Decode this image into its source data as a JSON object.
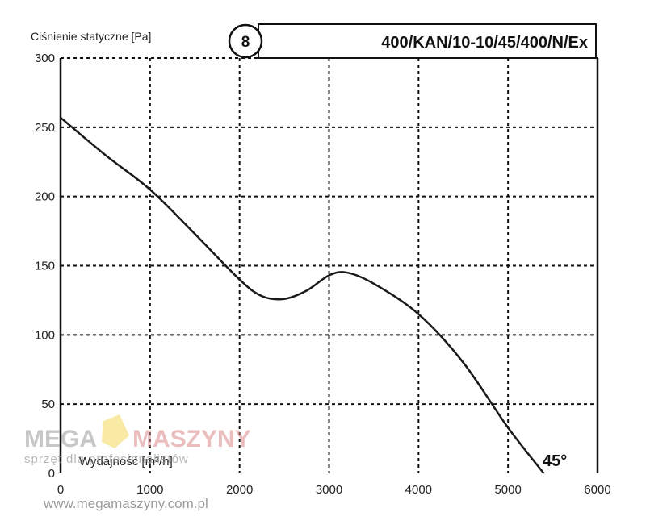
{
  "chart_data": {
    "type": "line",
    "title": "400/KAN/10-10/45/400/N/Ex",
    "badge": "8",
    "angle_label": "45°",
    "ylabel": "Ciśnienie statyczne [Pa]",
    "xlabel": "Wydajność [m³/h]",
    "xlim": [
      0,
      6000
    ],
    "ylim": [
      0,
      300
    ],
    "x_ticks": [
      0,
      1000,
      2000,
      3000,
      4000,
      5000,
      6000
    ],
    "y_ticks": [
      0,
      50,
      100,
      150,
      200,
      250,
      300
    ],
    "x_tick_labels": [
      "0",
      "1000",
      "2000",
      "3000",
      "4000",
      "5000",
      "6000"
    ],
    "y_tick_labels": [
      "0",
      "50",
      "100",
      "150",
      "200",
      "250",
      "300"
    ],
    "grid": true,
    "series": [
      {
        "x": [
          0,
          500,
          1000,
          1500,
          2000,
          2250,
          2500,
          2750,
          3000,
          3200,
          3500,
          4000,
          4500,
          5000,
          5400
        ],
        "y": [
          257,
          230,
          205,
          173,
          140,
          128,
          126,
          132,
          143,
          145,
          137,
          115,
          80,
          33,
          0
        ]
      }
    ]
  },
  "watermark": {
    "brand_left": "MEGA",
    "brand_right": "MASZYNY",
    "tagline": "sprzęt dla profesjonalistów",
    "url": "www.megamaszyny.com.pl"
  }
}
